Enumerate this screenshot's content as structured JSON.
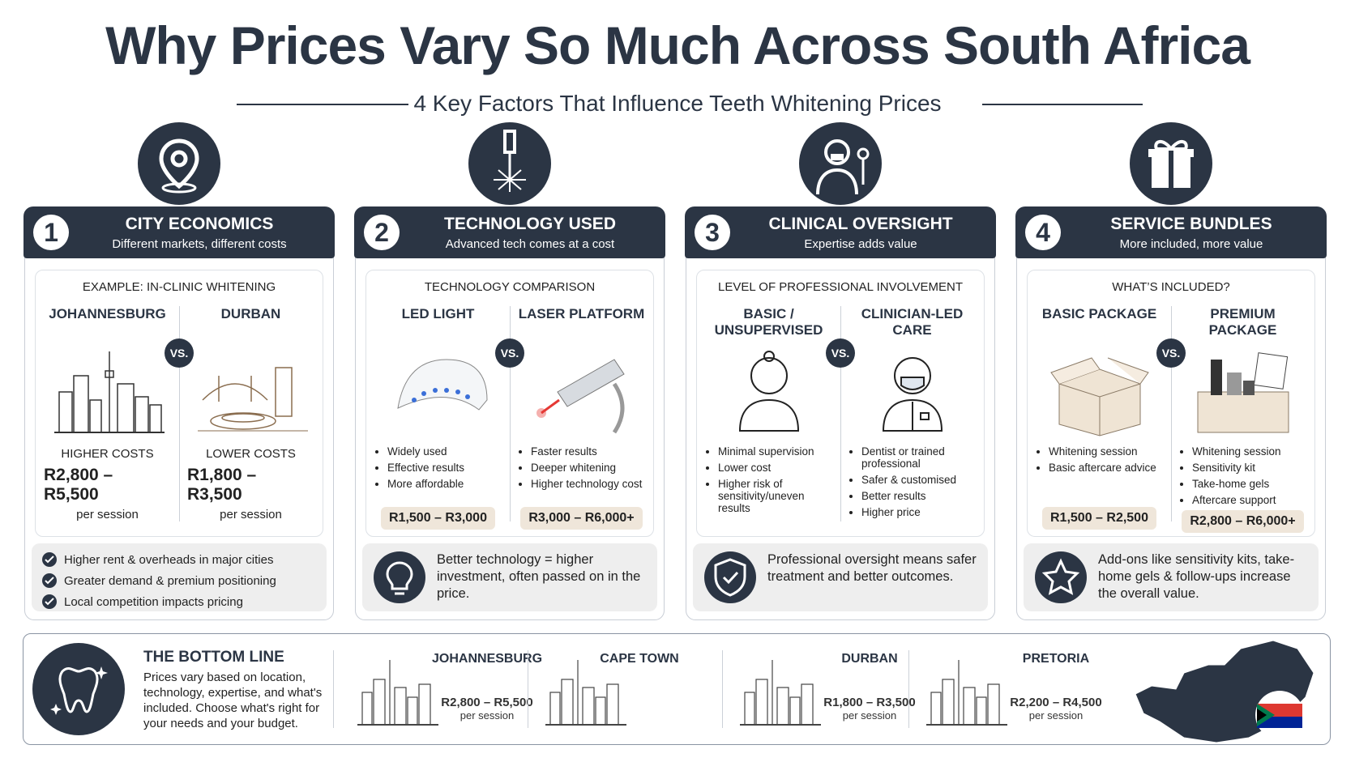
{
  "header": {
    "title": "Why Prices Vary So Much Across South Africa",
    "subtitle": "4 Key Factors That Influence Teeth Whitening Prices"
  },
  "factors": [
    {
      "number": "1",
      "title": "CITY ECONOMICS",
      "subtitle": "Different markets, different costs",
      "panel_heading": "EXAMPLE: IN-CLINIC WHITENING",
      "vs": "VS.",
      "options": [
        {
          "name": "JOHANNESBURG",
          "label": "HIGHER COSTS",
          "price": "R2,800 – R5,500",
          "unit": "per session"
        },
        {
          "name": "DURBAN",
          "label": "LOWER COSTS",
          "price": "R1,800 – R3,500",
          "unit": "per session"
        }
      ],
      "notes": [
        "Higher rent & overheads in major cities",
        "Greater demand & premium positioning",
        "Local competition impacts pricing"
      ]
    },
    {
      "number": "2",
      "title": "TECHNOLOGY USED",
      "subtitle": "Advanced tech comes at a cost",
      "panel_heading": "TECHNOLOGY COMPARISON",
      "vs": "VS.",
      "options": [
        {
          "name": "LED LIGHT",
          "bullets": [
            "Widely used",
            "Effective results",
            "More affordable"
          ],
          "price": "R1,500 – R3,000"
        },
        {
          "name": "LASER PLATFORM",
          "bullets": [
            "Faster results",
            "Deeper whitening",
            "Higher technology cost"
          ],
          "price": "R3,000 – R6,000+"
        }
      ],
      "note": "Better technology = higher investment, often passed on in the price."
    },
    {
      "number": "3",
      "title": "CLINICAL OVERSIGHT",
      "subtitle": "Expertise adds value",
      "panel_heading": "LEVEL OF PROFESSIONAL INVOLVEMENT",
      "vs": "VS.",
      "options": [
        {
          "name": "BASIC / UNSUPERVISED",
          "bullets": [
            "Minimal supervision",
            "Lower cost",
            "Higher risk of sensitivity/uneven results"
          ]
        },
        {
          "name": "CLINICIAN-LED CARE",
          "bullets": [
            "Dentist or trained professional",
            "Safer & customised",
            "Better results",
            "Higher price"
          ]
        }
      ],
      "note": "Professional oversight means safer treatment and better outcomes."
    },
    {
      "number": "4",
      "title": "SERVICE BUNDLES",
      "subtitle": "More included, more value",
      "panel_heading": "WHAT’S INCLUDED?",
      "vs": "VS.",
      "options": [
        {
          "name": "BASIC PACKAGE",
          "bullets": [
            "Whitening session",
            "Basic aftercare advice"
          ],
          "price": "R1,500 – R2,500"
        },
        {
          "name": "PREMIUM PACKAGE",
          "bullets": [
            "Whitening session",
            "Sensitivity kit",
            "Take-home gels",
            "Aftercare support"
          ],
          "price": "R2,800 – R6,000+"
        }
      ],
      "note": "Add-ons like sensitivity kits, take-home gels & follow-ups increase the overall value."
    }
  ],
  "bottom_line": {
    "title": "THE BOTTOM LINE",
    "text": "Prices vary based on location, technology, expertise, and what's included. Choose what's right for your needs and your budget.",
    "cities": [
      {
        "name": "JOHANNESBURG",
        "price": "R2,800 – R5,500",
        "unit": "per session"
      },
      {
        "name": "CAPE TOWN"
      },
      {
        "name": "DURBAN",
        "price": "R1,800 – R3,500",
        "unit": "per session"
      },
      {
        "name": "PRETORIA",
        "price": "R2,200 – R4,500",
        "unit": "per session"
      }
    ]
  }
}
